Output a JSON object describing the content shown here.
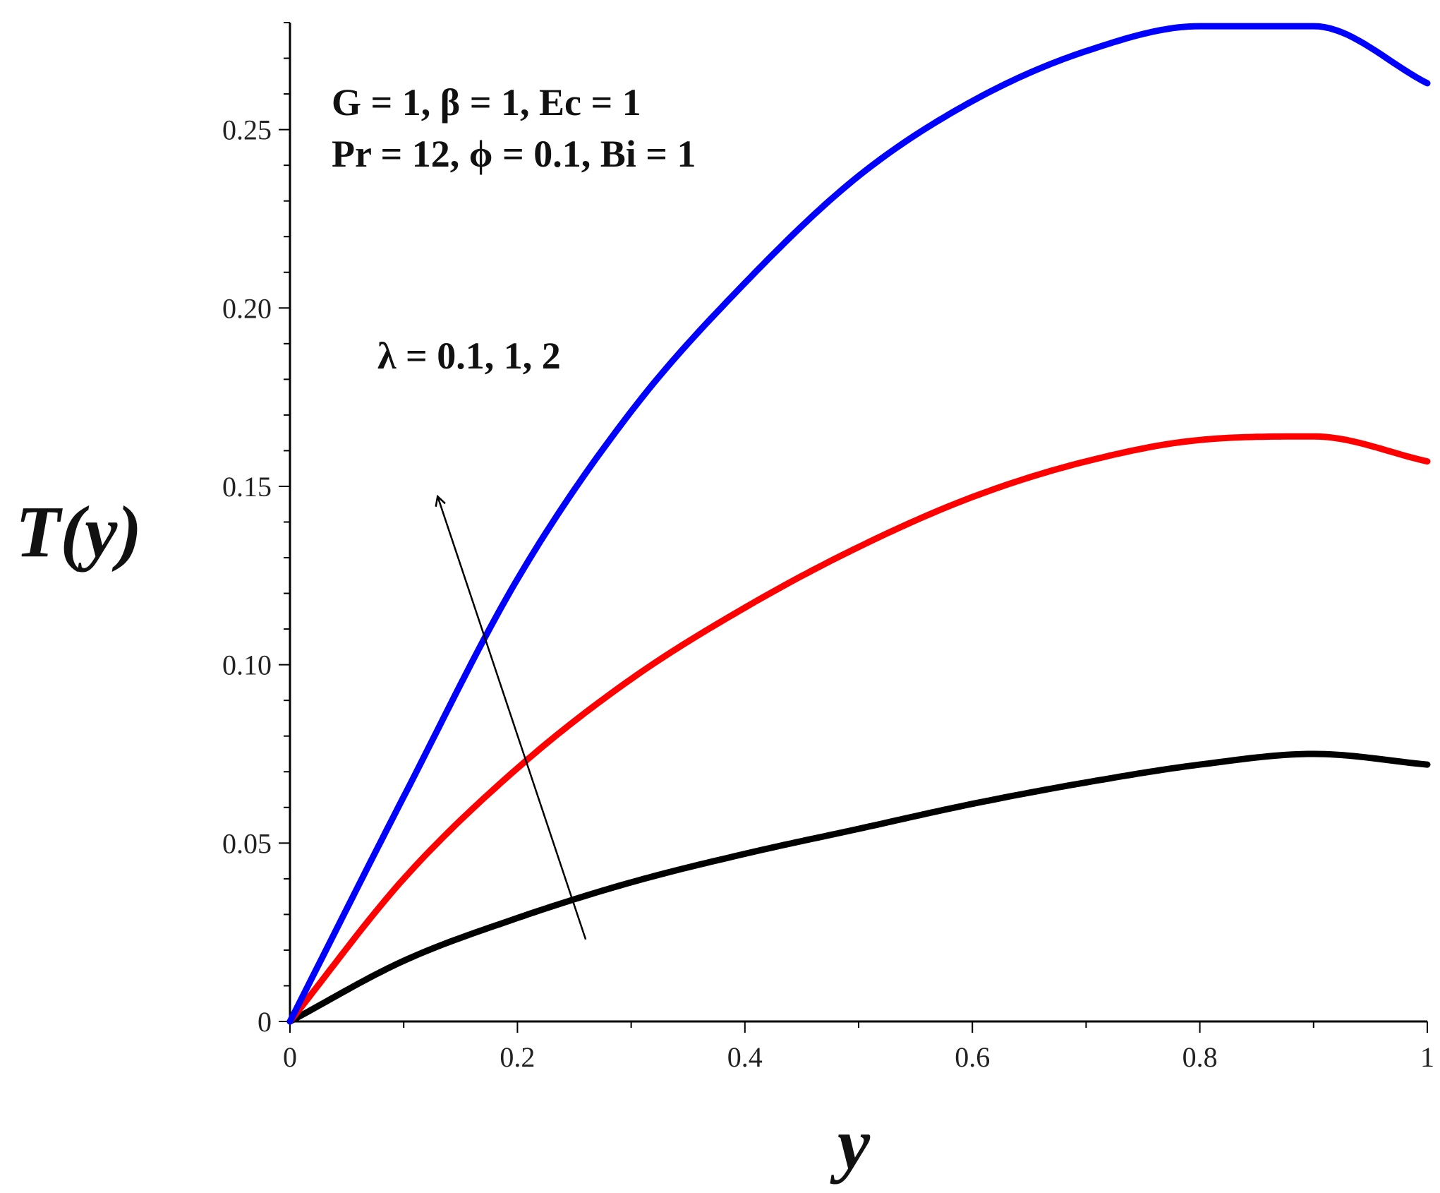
{
  "chart_data": {
    "type": "line",
    "xlabel": "y",
    "ylabel": "T(y)",
    "xlim": [
      0,
      1
    ],
    "ylim": [
      0,
      0.28
    ],
    "x_ticks": [
      "0",
      "0.2",
      "0.4",
      "0.6",
      "0.8",
      "1"
    ],
    "y_ticks": [
      "0",
      "0.05",
      "0.10",
      "0.15",
      "0.20",
      "0.25"
    ],
    "grid": false,
    "legend": "none",
    "annotations": {
      "params_line1": "G = 1, β = 1, Ec = 1",
      "params_line2": "Pr = 12, ϕ = 0.1, Bi = 1",
      "lambda_label": "λ = 0.1, 1, 2"
    },
    "arrow": {
      "from": [
        0.26,
        0.023
      ],
      "to": [
        0.13,
        0.147
      ]
    },
    "x": [
      0,
      0.1,
      0.2,
      0.3,
      0.4,
      0.5,
      0.6,
      0.7,
      0.8,
      0.9,
      1.0
    ],
    "series": [
      {
        "color": "#000000",
        "values": [
          0,
          0.017,
          0.029,
          0.039,
          0.047,
          0.054,
          0.061,
          0.067,
          0.072,
          0.075,
          0.072
        ]
      },
      {
        "color": "#ff0000",
        "values": [
          0,
          0.04,
          0.071,
          0.096,
          0.116,
          0.133,
          0.147,
          0.157,
          0.163,
          0.164,
          0.157
        ]
      },
      {
        "color": "#0000ff",
        "values": [
          0,
          0.063,
          0.124,
          0.171,
          0.207,
          0.237,
          0.258,
          0.272,
          0.279,
          0.279,
          0.263
        ]
      }
    ]
  }
}
